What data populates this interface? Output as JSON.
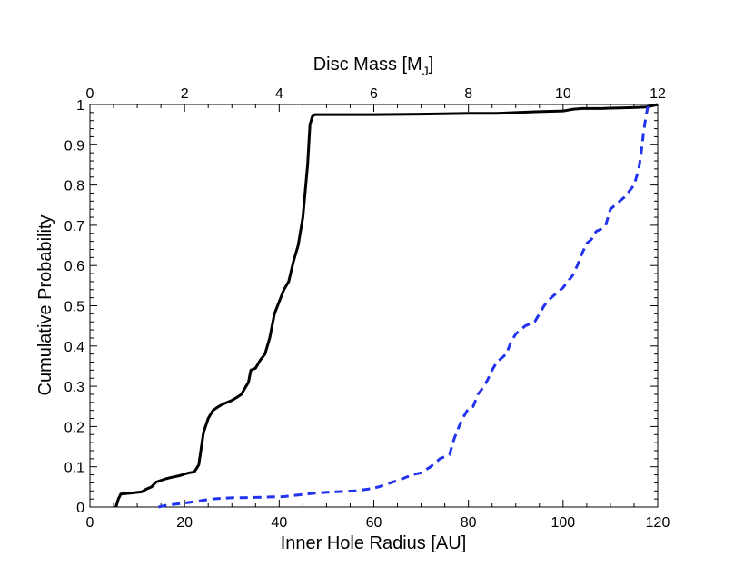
{
  "chart_data": {
    "type": "line",
    "title": "",
    "xlabel": "Inner Hole Radius [AU]",
    "ylabel": "Cumulative Probability",
    "top_xlabel": "Disc Mass [M",
    "top_xlabel_sub": "J",
    "top_xlabel_end": "]",
    "xlim": [
      0,
      120
    ],
    "ylim": [
      0,
      1
    ],
    "top_xlim": [
      0,
      12
    ],
    "x_ticks": [
      0,
      20,
      40,
      60,
      80,
      100,
      120
    ],
    "y_ticks": [
      0,
      0.1,
      0.2,
      0.3,
      0.4,
      0.5,
      0.6,
      0.7,
      0.8,
      0.9,
      1
    ],
    "y_tick_labels": [
      "0",
      "0.1",
      "0.2",
      "0.3",
      "0.4",
      "0.5",
      "0.6",
      "0.7",
      "0.8",
      "0.9",
      "1"
    ],
    "top_x_ticks": [
      0,
      2,
      4,
      6,
      8,
      10,
      12
    ],
    "grid": false,
    "series": [
      {
        "name": "Disc Mass",
        "axis": "top",
        "style": "solid",
        "color": "#000000",
        "x": [
          0.55,
          0.6,
          0.65,
          0.9,
          1.1,
          1.2,
          1.3,
          1.4,
          1.6,
          1.7,
          1.9,
          2.0,
          2.1,
          2.2,
          2.25,
          2.3,
          2.4,
          2.5,
          2.6,
          2.7,
          2.8,
          3.0,
          3.1,
          3.2,
          3.25,
          3.35,
          3.4,
          3.5,
          3.6,
          3.7,
          3.8,
          3.9,
          4.0,
          4.1,
          4.2,
          4.3,
          4.4,
          4.5,
          4.6,
          4.65,
          4.7,
          4.75,
          4.8,
          4.85,
          5.0,
          6.0,
          7.0,
          8.0,
          8.6,
          9.0,
          9.4,
          10.0,
          10.2,
          10.4,
          10.8,
          11.0,
          11.4,
          11.6,
          11.75,
          11.85,
          12.0
        ],
        "y": [
          0.0,
          0.02,
          0.032,
          0.035,
          0.038,
          0.045,
          0.05,
          0.062,
          0.07,
          0.073,
          0.078,
          0.082,
          0.085,
          0.087,
          0.095,
          0.105,
          0.185,
          0.22,
          0.24,
          0.248,
          0.255,
          0.265,
          0.272,
          0.28,
          0.29,
          0.31,
          0.34,
          0.345,
          0.365,
          0.38,
          0.42,
          0.48,
          0.51,
          0.54,
          0.56,
          0.61,
          0.65,
          0.72,
          0.85,
          0.95,
          0.97,
          0.975,
          0.975,
          0.975,
          0.975,
          0.975,
          0.976,
          0.978,
          0.978,
          0.98,
          0.982,
          0.984,
          0.988,
          0.99,
          0.99,
          0.991,
          0.992,
          0.993,
          0.994,
          0.996,
          1.0
        ]
      },
      {
        "name": "Inner Hole Radius",
        "axis": "bottom",
        "style": "dashed",
        "color": "#2233ee",
        "x": [
          14.5,
          16,
          18,
          20,
          22,
          24,
          26,
          28,
          30,
          32,
          35,
          38,
          41,
          44,
          48,
          52,
          56,
          59,
          61,
          63,
          66,
          68,
          70,
          72,
          73,
          74,
          75,
          76,
          77,
          78,
          79,
          80,
          81,
          82,
          83,
          84,
          85,
          86,
          87,
          88,
          89,
          90,
          91,
          92,
          93,
          94,
          95,
          96,
          97,
          98,
          99,
          100,
          101,
          102,
          103,
          104,
          105,
          106,
          107,
          108,
          109,
          110,
          111,
          112,
          113,
          114,
          115,
          116,
          116.5,
          117,
          117.5,
          118
        ],
        "y": [
          0.0,
          0.004,
          0.007,
          0.01,
          0.013,
          0.017,
          0.02,
          0.022,
          0.023,
          0.023,
          0.024,
          0.025,
          0.026,
          0.03,
          0.035,
          0.038,
          0.04,
          0.045,
          0.05,
          0.058,
          0.07,
          0.08,
          0.085,
          0.1,
          0.11,
          0.12,
          0.125,
          0.13,
          0.17,
          0.2,
          0.225,
          0.245,
          0.25,
          0.28,
          0.295,
          0.315,
          0.34,
          0.36,
          0.37,
          0.38,
          0.41,
          0.43,
          0.44,
          0.45,
          0.455,
          0.46,
          0.48,
          0.5,
          0.515,
          0.525,
          0.535,
          0.545,
          0.56,
          0.575,
          0.6,
          0.63,
          0.655,
          0.665,
          0.685,
          0.69,
          0.7,
          0.74,
          0.75,
          0.76,
          0.77,
          0.785,
          0.8,
          0.84,
          0.88,
          0.93,
          0.97,
          1.0
        ]
      }
    ]
  }
}
